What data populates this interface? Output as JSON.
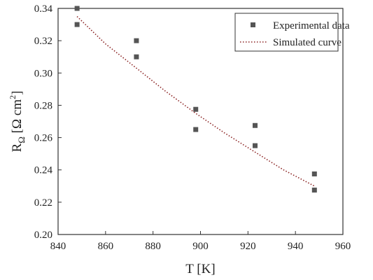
{
  "chart_data": {
    "type": "scatter",
    "xlabel": "T [K]",
    "ylabel_parts": {
      "base": "R",
      "sub": "Ω",
      "bracket_open": " [Ω cm",
      "sup": "2",
      "bracket_close": "]"
    },
    "xlim": [
      840,
      960
    ],
    "ylim": [
      0.2,
      0.34
    ],
    "x_ticks": [
      840,
      860,
      880,
      900,
      920,
      940,
      960
    ],
    "x_tick_labels": [
      "840",
      "860",
      "880",
      "900",
      "920",
      "940",
      "960"
    ],
    "y_ticks": [
      0.2,
      0.22,
      0.24,
      0.26,
      0.28,
      0.3,
      0.32,
      0.34
    ],
    "y_tick_labels": [
      "0.20",
      "0.22",
      "0.24",
      "0.26",
      "0.28",
      "0.30",
      "0.32",
      "0.34"
    ],
    "grid": false,
    "legend_position": "top-right",
    "series": [
      {
        "name": "Experimental data",
        "kind": "scatter",
        "marker": "square",
        "color": "#555555",
        "points": [
          {
            "x": 848,
            "y": 0.34
          },
          {
            "x": 848,
            "y": 0.33
          },
          {
            "x": 873,
            "y": 0.32
          },
          {
            "x": 873,
            "y": 0.31
          },
          {
            "x": 898,
            "y": 0.2775
          },
          {
            "x": 898,
            "y": 0.265
          },
          {
            "x": 923,
            "y": 0.2675
          },
          {
            "x": 923,
            "y": 0.255
          },
          {
            "x": 948,
            "y": 0.2375
          },
          {
            "x": 948,
            "y": 0.2275
          }
        ]
      },
      {
        "name": "Simulated curve",
        "kind": "line",
        "style": "dotted",
        "color": "#8b2323",
        "points": [
          {
            "x": 848,
            "y": 0.335
          },
          {
            "x": 860,
            "y": 0.318
          },
          {
            "x": 873,
            "y": 0.303
          },
          {
            "x": 885,
            "y": 0.289
          },
          {
            "x": 898,
            "y": 0.275
          },
          {
            "x": 910,
            "y": 0.263
          },
          {
            "x": 923,
            "y": 0.251
          },
          {
            "x": 935,
            "y": 0.24
          },
          {
            "x": 948,
            "y": 0.23
          }
        ]
      }
    ]
  }
}
